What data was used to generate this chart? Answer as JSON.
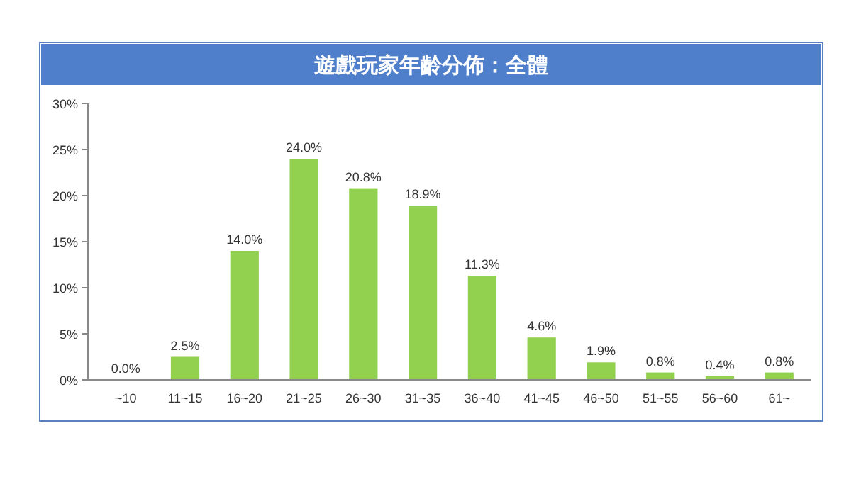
{
  "chart_data": {
    "type": "bar",
    "title": "遊戲玩家年齡分佈：全體",
    "categories": [
      "~10",
      "11~15",
      "16~20",
      "21~25",
      "26~30",
      "31~35",
      "36~40",
      "41~45",
      "46~50",
      "51~55",
      "56~60",
      "61~"
    ],
    "values": [
      0,
      2.5,
      14.0,
      24.0,
      20.8,
      18.9,
      11.3,
      4.6,
      1.9,
      0.8,
      0.4,
      0.8
    ],
    "value_labels": [
      "0.0%",
      "2.5%",
      "14.0%",
      "24.0%",
      "20.8%",
      "18.9%",
      "11.3%",
      "4.6%",
      "1.9%",
      "0.8%",
      "0.4%",
      "0.8%"
    ],
    "color": "#92d050",
    "ylim": [
      0,
      30
    ],
    "yticks": [
      {
        "value": 0,
        "label": "0%"
      },
      {
        "value": 5,
        "label": "5%"
      },
      {
        "value": 10,
        "label": "10%"
      },
      {
        "value": 15,
        "label": "15%"
      },
      {
        "value": 20,
        "label": "20%"
      },
      {
        "value": 25,
        "label": "25%"
      },
      {
        "value": 30,
        "label": "30%"
      }
    ]
  }
}
